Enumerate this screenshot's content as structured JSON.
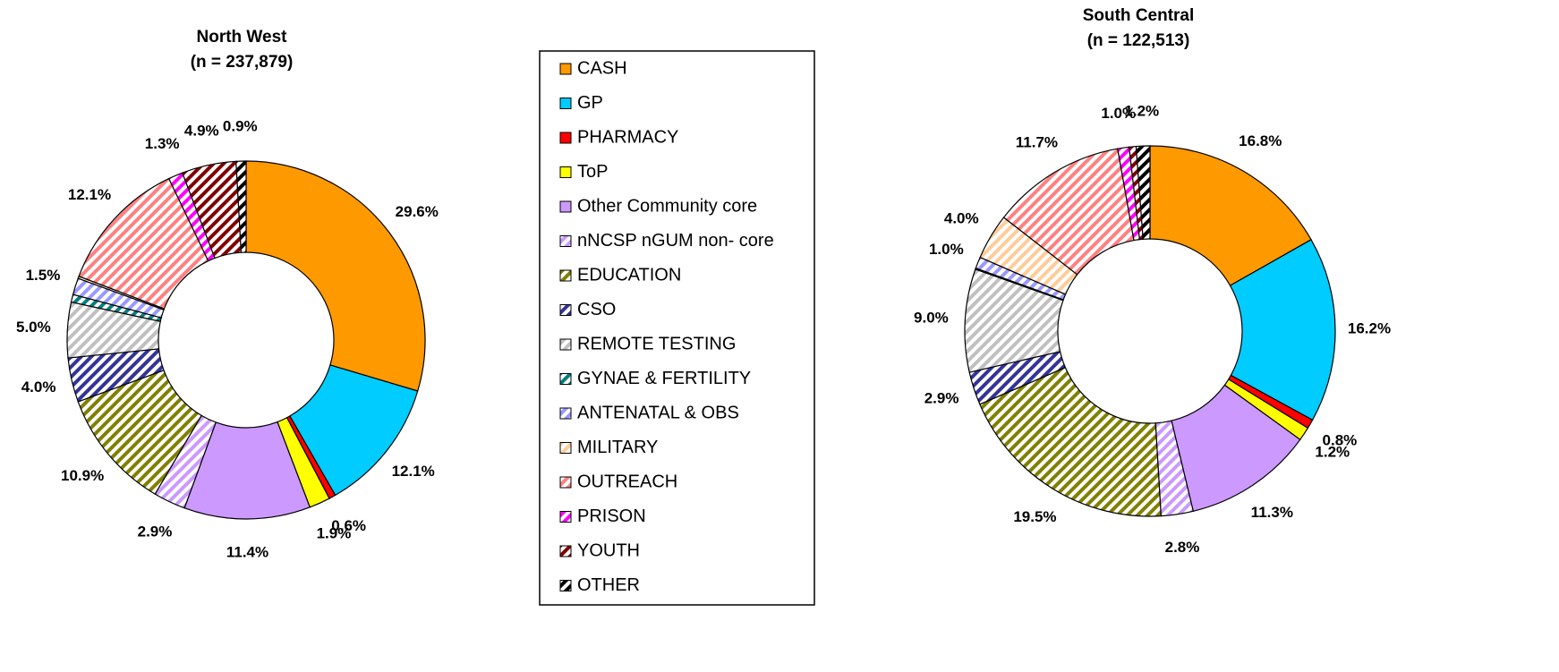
{
  "chart_data": [
    {
      "type": "pie",
      "title": "North West",
      "subtitle": "(n = 237,879)",
      "categories": [
        "CASH",
        "GP",
        "PHARMACY",
        "ToP",
        "Other Community core",
        " nNCSP nGUM non- core",
        "EDUCATION",
        "CSO",
        "REMOTE TESTING",
        "GYNAE & FERTILITY",
        "ANTENATAL & OBS",
        "MILITARY",
        "OUTREACH",
        "PRISON",
        "YOUTH",
        "OTHER"
      ],
      "colors": [
        "#ff9900",
        "#00ccff",
        "#ff0000",
        "#ffff00",
        "#cc99ff",
        "#cc99ff",
        "#808000",
        "#333399",
        "#c0c0c0",
        "#008080",
        "#9999ff",
        "#ffcc99",
        "#ff8080",
        "#ff00ff",
        "#800000",
        "#000000"
      ],
      "patterns": [
        "solid",
        "solid",
        "solid",
        "solid",
        "solid",
        "hatch",
        "hatch",
        "hatch",
        "hatch",
        "hatch",
        "hatch",
        "hatch",
        "hatch",
        "hatch",
        "hatch",
        "hatch"
      ],
      "values": [
        29.6,
        12.1,
        0.6,
        1.9,
        11.4,
        2.9,
        10.9,
        4.0,
        5.0,
        0.7,
        1.5,
        0.2,
        12.1,
        1.3,
        4.9,
        0.9
      ],
      "value_labels": [
        "29.6%",
        "12.1%",
        "0.6%",
        "1.9%",
        "11.4%",
        "2.9%",
        "10.9%",
        "4.0%",
        "5.0%",
        null,
        "1.5%",
        null,
        "12.1%",
        "1.3%",
        "4.9%",
        "0.9%"
      ]
    },
    {
      "type": "pie",
      "title": "South Central",
      "subtitle": "(n = 122,513)",
      "values": [
        16.8,
        16.2,
        0.8,
        1.2,
        11.3,
        2.8,
        19.5,
        2.9,
        9.0,
        0.1,
        1.0,
        4.0,
        11.7,
        1.0,
        0.6,
        1.2
      ],
      "value_labels": [
        "16.8%",
        "16.2%",
        "0.8%",
        "1.2%",
        "11.3%",
        "2.8%",
        "19.5%",
        "2.9%",
        "9.0%",
        null,
        "1.0%",
        "4.0%",
        "11.7%",
        "1.0%",
        null,
        "1.2%"
      ]
    }
  ]
}
